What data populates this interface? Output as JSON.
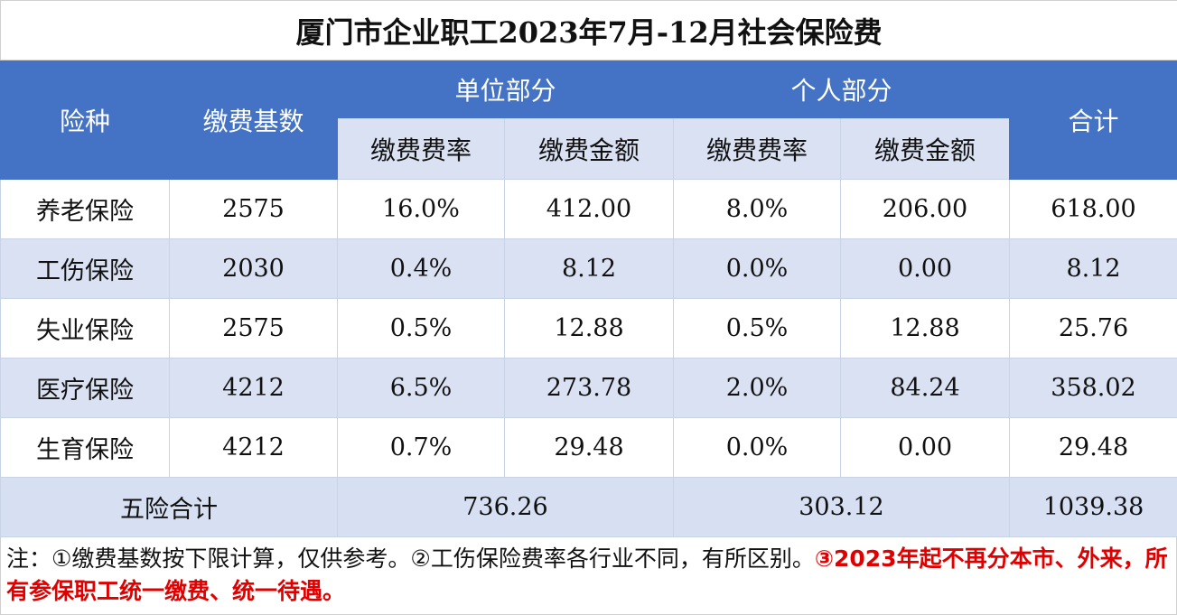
{
  "title": "厦门市企业职工2023年7月-12月社会保险费",
  "table": {
    "header": {
      "type": "险种",
      "base": "缴费基数",
      "unit_part": "单位部分",
      "personal_part": "个人部分",
      "total": "合计",
      "sub": [
        "缴费费率",
        "缴费金额",
        "缴费费率",
        "缴费金额"
      ]
    },
    "rows": [
      [
        "养老保险",
        "2575",
        "16.0%",
        "412.00",
        "8.0%",
        "206.00",
        "618.00"
      ],
      [
        "工伤保险",
        "2030",
        "0.4%",
        "8.12",
        "0.0%",
        "0.00",
        "8.12"
      ],
      [
        "失业保险",
        "2575",
        "0.5%",
        "12.88",
        "0.5%",
        "12.88",
        "25.76"
      ],
      [
        "医疗保险",
        "4212",
        "6.5%",
        "273.78",
        "2.0%",
        "84.24",
        "358.02"
      ],
      [
        "生育保险",
        "4212",
        "0.7%",
        "29.48",
        "0.0%",
        "0.00",
        "29.48"
      ]
    ],
    "summary": {
      "label": "五险合计",
      "unit_total": "736.26",
      "personal_total": "303.12",
      "total": "1039.38"
    }
  },
  "note": {
    "text": "注：①缴费基数按下限计算，仅供参考。②工伤保险费率各行业不同，有所区别。",
    "highlight": "③2023年起不再分本市、外来，所有参保职工统一缴费、统一待遇。"
  }
}
